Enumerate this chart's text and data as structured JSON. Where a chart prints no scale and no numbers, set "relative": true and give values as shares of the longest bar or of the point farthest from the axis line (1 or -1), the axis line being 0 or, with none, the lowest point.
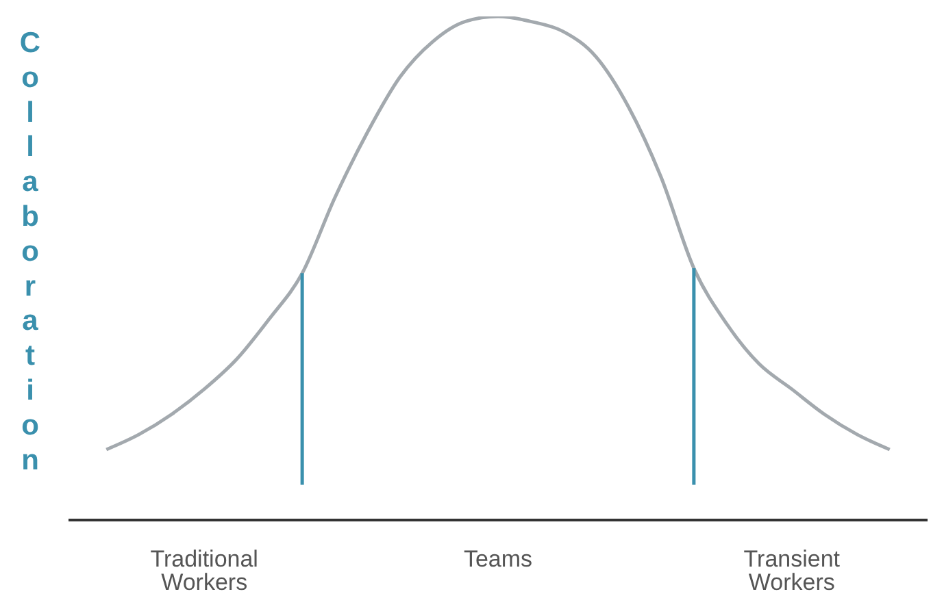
{
  "chart_data": {
    "type": "line",
    "ylabel": "Collaboration",
    "relative": true,
    "grid": false,
    "legend": false,
    "marker": "none",
    "line_style": "solid",
    "categories": [
      null,
      null,
      null,
      "Traditional Workers",
      null,
      null,
      null,
      null,
      null,
      null,
      null,
      null,
      "Teams",
      null,
      null,
      null,
      null,
      null,
      null,
      null,
      null,
      "Transient Workers",
      null,
      null,
      null
    ],
    "series": [
      {
        "color": "#a3a9ae",
        "values": [
          0.14,
          0.17,
          0.21,
          0.26,
          0.32,
          0.4,
          0.49,
          0.64,
          0.77,
          0.88,
          0.95,
          0.99,
          1,
          0.99,
          0.97,
          0.92,
          0.82,
          0.68,
          0.5,
          0.39,
          0.31,
          0.26,
          0.21,
          0.17,
          0.14
        ]
      }
    ]
  }
}
